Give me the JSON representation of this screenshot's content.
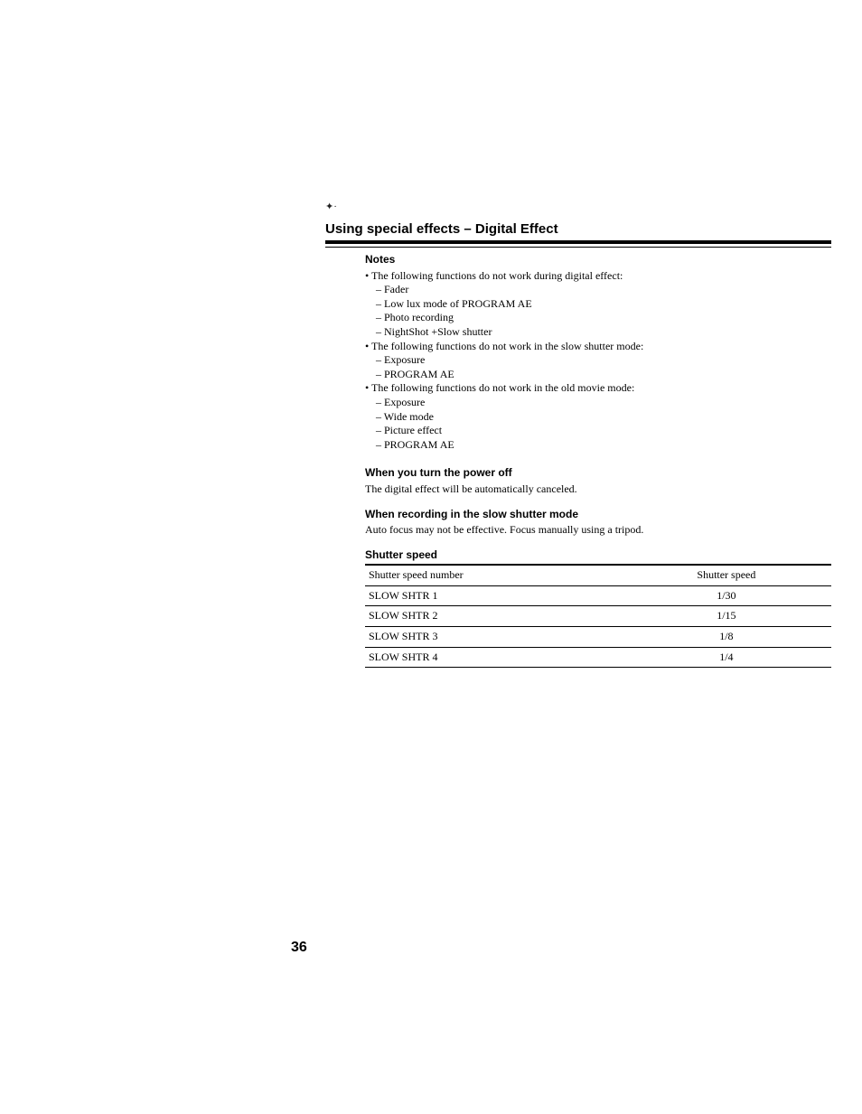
{
  "title": "Using special effects – Digital Effect",
  "notes_heading": "Notes",
  "bullet1_intro": "• The following functions do not work during digital effect:",
  "bullet1_items": [
    "– Fader",
    "– Low lux mode of PROGRAM AE",
    "– Photo recording",
    "– NightShot +Slow shutter"
  ],
  "bullet2_intro": "• The following functions do not work in the slow shutter mode:",
  "bullet2_items": [
    "– Exposure",
    "– PROGRAM AE"
  ],
  "bullet3_intro": "• The following functions do not work in the old movie mode:",
  "bullet3_items": [
    "– Exposure",
    "– Wide mode",
    "– Picture effect",
    "– PROGRAM AE"
  ],
  "sub1_heading": "When you turn the power off",
  "sub1_body": "The digital effect will be automatically canceled.",
  "sub2_heading": "When recording in the slow shutter mode",
  "sub2_body": "Auto focus may not be effective. Focus manually using a tripod.",
  "table_heading": "Shutter speed",
  "table": {
    "columns": [
      "Shutter speed number",
      "Shutter speed"
    ],
    "rows": [
      [
        "SLOW SHTR 1",
        "1/30"
      ],
      [
        "SLOW SHTR 2",
        "1/15"
      ],
      [
        "SLOW SHTR 3",
        "1/8"
      ],
      [
        "SLOW SHTR 4",
        "1/4"
      ]
    ],
    "col_widths": [
      "55%",
      "45%"
    ]
  },
  "page_number": "36",
  "artifact": "✦·"
}
